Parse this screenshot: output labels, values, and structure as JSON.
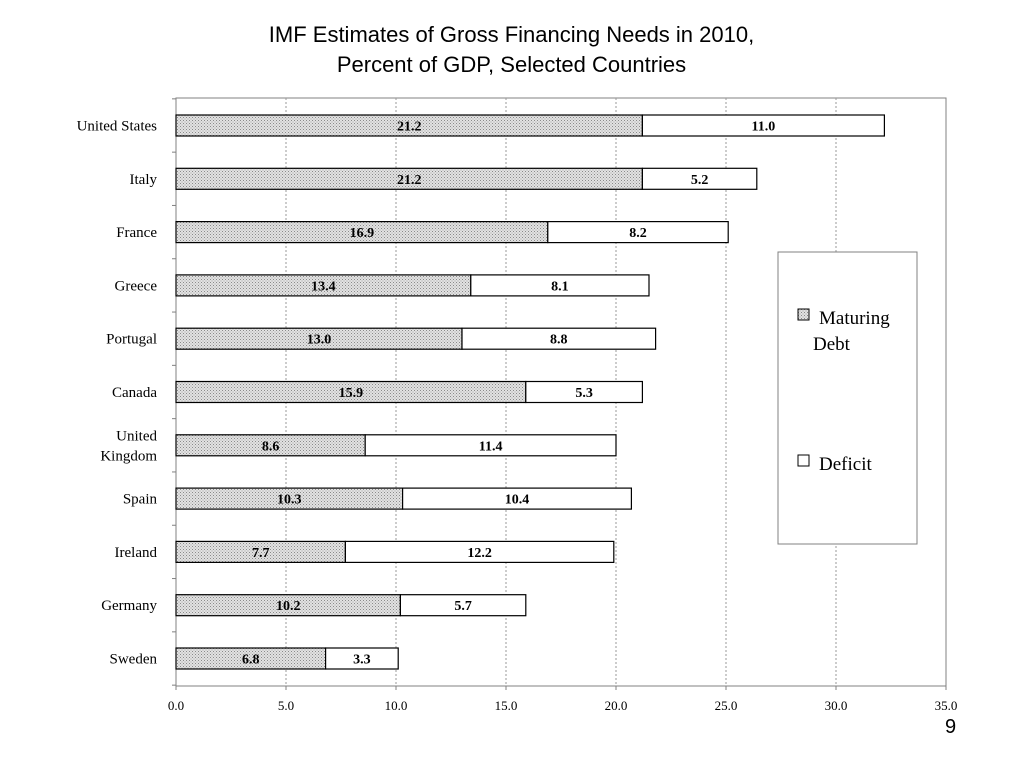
{
  "title_line1": "IMF Estimates of Gross Financing Needs in 2010,",
  "title_line2": "Percent of GDP, Selected Countries",
  "page_number": "9",
  "chart_data": {
    "type": "bar",
    "orientation": "horizontal",
    "stacked": true,
    "categories": [
      [
        "United States"
      ],
      [
        "Italy"
      ],
      [
        "France"
      ],
      [
        "Greece"
      ],
      [
        "Portugal"
      ],
      [
        "Canada"
      ],
      [
        "United",
        "Kingdom"
      ],
      [
        "Spain"
      ],
      [
        "Ireland"
      ],
      [
        "Germany"
      ],
      [
        "Sweden"
      ]
    ],
    "series": [
      {
        "name": "Maturing Debt",
        "legend_lines": [
          "Maturing",
          "Debt"
        ],
        "fill": "pattern-gray",
        "values": [
          21.2,
          21.2,
          16.9,
          13.4,
          13.0,
          15.9,
          8.6,
          10.3,
          7.7,
          10.2,
          6.8
        ],
        "labels": [
          "21.2",
          "21.2",
          "16.9",
          "13.4",
          "13.0",
          "15.9",
          "8.6",
          "10.3",
          "7.7",
          "10.2",
          "6.8"
        ]
      },
      {
        "name": "Deficit",
        "legend_lines": [
          "Deficit"
        ],
        "fill": "#ffffff",
        "values": [
          11.0,
          5.2,
          8.2,
          8.1,
          8.8,
          5.3,
          11.4,
          10.4,
          12.2,
          5.7,
          3.3
        ],
        "labels": [
          "11.0",
          "5.2",
          "8.2",
          "8.1",
          "8.8",
          "5.3",
          "11.4",
          "10.4",
          "12.2",
          "5.7",
          "3.3"
        ]
      }
    ],
    "xlim": [
      0,
      35
    ],
    "x_ticks": [
      0,
      5,
      10,
      15,
      20,
      25,
      30,
      35
    ],
    "x_tick_labels": [
      "0.0",
      "5.0",
      "10.0",
      "15.0",
      "20.0",
      "25.0",
      "30.0",
      "35.0"
    ],
    "grid": "vertical dashed",
    "legend_position": "right"
  }
}
